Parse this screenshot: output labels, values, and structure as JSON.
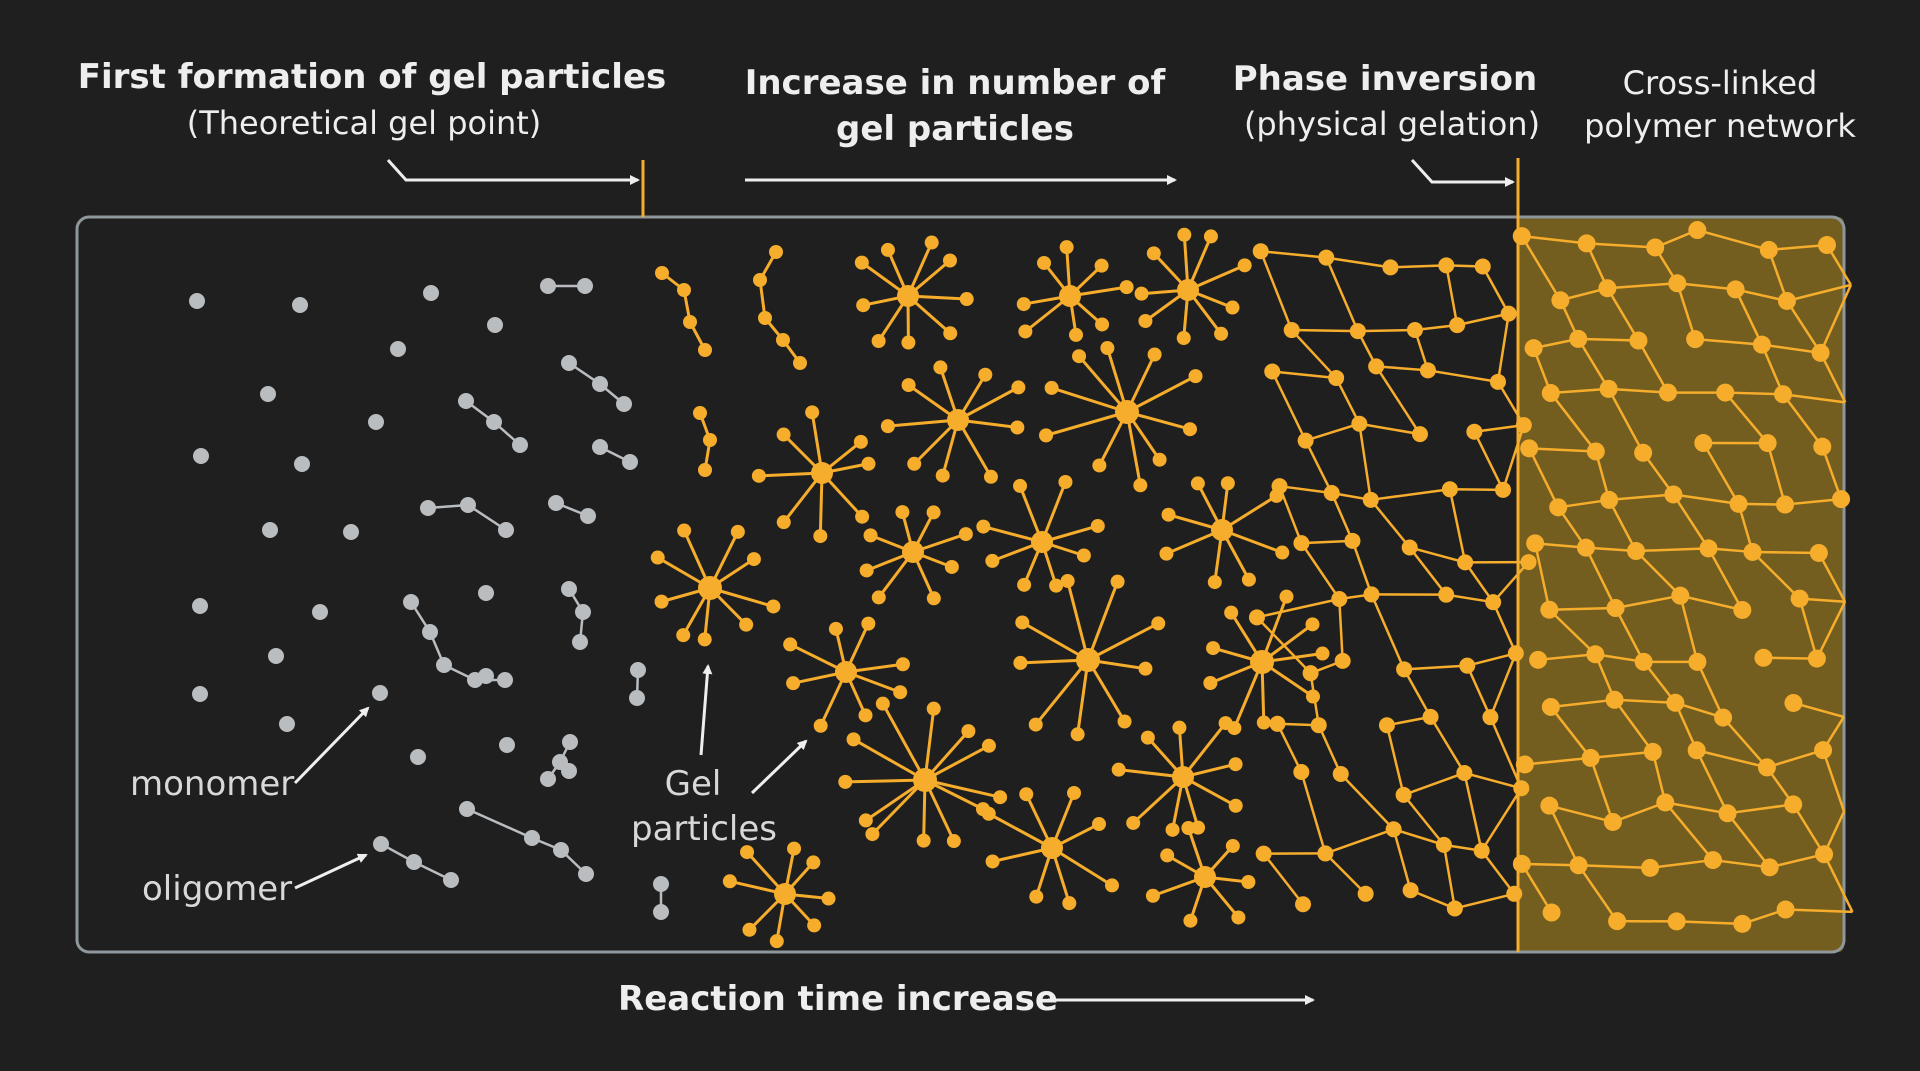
{
  "labels": {
    "first_formation_title": "First formation of gel particles",
    "first_formation_sub": "(Theoretical gel point)",
    "increase_line1": "Increase in number of",
    "increase_line2": "gel particles",
    "phase_title": "Phase inversion",
    "phase_sub": "(physical gelation)",
    "network_line1": "Cross-linked",
    "network_line2": "polymer network",
    "monomer": "monomer",
    "oligomer": "oligomer",
    "gel_line1": "Gel",
    "gel_line2": "particles",
    "reaction_time": "Reaction time increase"
  },
  "colors": {
    "background": "#1f1f20",
    "frame": "#8e979b",
    "monomer": "#b9bdc0",
    "gel": "#f6ad2c",
    "network_fill": "#7b6420",
    "arrow": "#eeeeee"
  }
}
